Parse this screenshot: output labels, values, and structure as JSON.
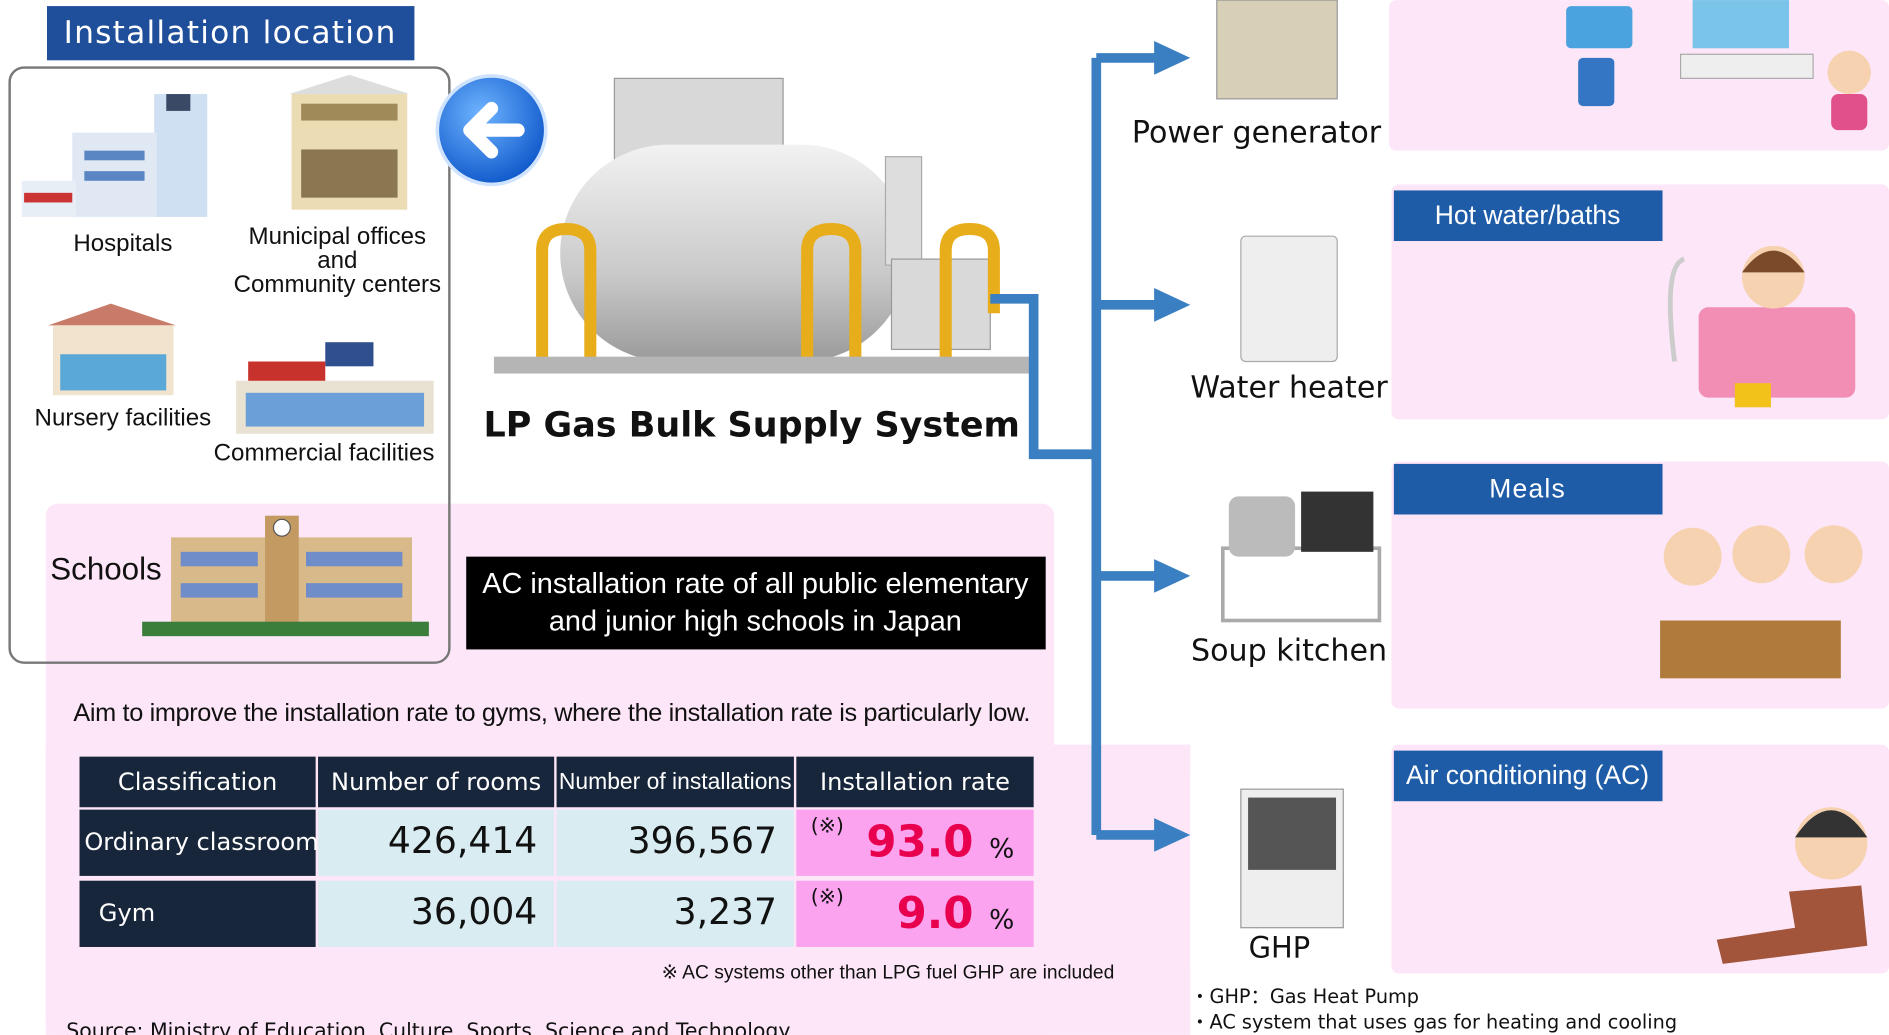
{
  "installation": {
    "title": "Installation location",
    "hospitals": "Hospitals",
    "municipal": [
      "Municipal offices",
      "and",
      "Community centers"
    ],
    "nursery": "Nursery facilities",
    "commercial": "Commercial facilities",
    "schools": "Schools"
  },
  "system": {
    "label": "LP Gas Bulk Supply System"
  },
  "uses": {
    "power": "Power generator",
    "water": "Water heater",
    "soup": "Soup kitchen",
    "ghp": "GHP"
  },
  "panels": {
    "hot_water": "Hot water/baths",
    "meals": "Meals",
    "ac": "Air conditioning (AC)"
  },
  "ac_box": [
    "AC installation rate of all public elementary",
    "and junior high schools in Japan"
  ],
  "aim": "Aim to improve the installation rate to gyms, where the installation rate is particularly low.",
  "table": {
    "header": [
      "Classification",
      "Number of rooms",
      "Number of installations",
      "Installation rate"
    ],
    "rows": [
      [
        "Ordinary classroom",
        "426,414",
        "396,567",
        {
          "mark": "(※)",
          "rate": "93.0",
          "unit": "%"
        }
      ],
      [
        "Gym",
        "36,004",
        "3,237",
        {
          "mark": "(※)",
          "rate": "9.0",
          "unit": "%"
        }
      ]
    ]
  },
  "note": "※ AC systems other than LPG fuel GHP are included",
  "source": "Source: Ministry of Education, Culture, Sports, Science and Technology",
  "ghp_notes": [
    "・GHP：Gas Heat Pump",
    "・AC system that uses gas for heating and cooling"
  ]
}
